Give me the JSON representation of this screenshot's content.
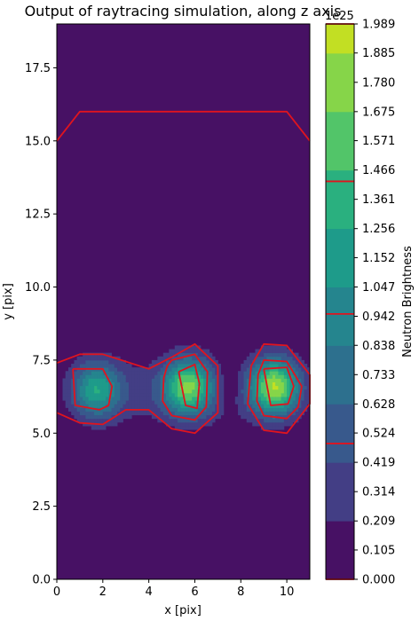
{
  "chart_data": {
    "type": "heatmap",
    "title": "Output of raytracing simulation, along z axis",
    "xlabel": "x [pix]",
    "ylabel": "y [pix]",
    "xlim": [
      0,
      11
    ],
    "ylim": [
      0,
      19
    ],
    "x_ticks": [
      "0",
      "2",
      "4",
      "6",
      "8",
      "10"
    ],
    "y_ticks": [
      "0.0",
      "2.5",
      "5.0",
      "7.5",
      "10.0",
      "12.5",
      "15.0",
      "17.5"
    ],
    "colorbar": {
      "label": "Neutron Brightness",
      "offset_text": "1e25",
      "range": [
        0,
        1.989
      ],
      "ticks": [
        "0.000",
        "0.105",
        "0.209",
        "0.314",
        "0.419",
        "0.524",
        "0.628",
        "0.733",
        "0.838",
        "0.942",
        "1.047",
        "1.152",
        "1.256",
        "1.361",
        "1.466",
        "1.571",
        "1.675",
        "1.780",
        "1.885",
        "1.989"
      ],
      "band_edges": [
        0,
        0.2094,
        0.4188,
        0.6282,
        0.8376,
        1.047,
        1.2564,
        1.4658,
        1.6752,
        1.8846,
        1.989
      ],
      "band_colors": [
        "#471164",
        "#433e85",
        "#38598c",
        "#2d708e",
        "#25858e",
        "#1e9b8a",
        "#2ab07f",
        "#52c569",
        "#86d549",
        "#c2df23"
      ],
      "contour_levels": [
        0,
        0.4864,
        0.9504,
        1.4253,
        1.989
      ],
      "contour_color": "#e0141e"
    },
    "field": {
      "description_none": "",
      "x": [
        0,
        1,
        2,
        3,
        4,
        5,
        6,
        7,
        8,
        9,
        10,
        11
      ],
      "y": [
        0,
        1,
        2,
        3,
        4,
        5,
        6,
        7,
        8,
        9,
        10,
        11,
        12,
        13,
        14,
        15,
        16,
        17,
        18,
        19
      ],
      "blobs": [
        {
          "cx": 1.7,
          "cy": 6.5,
          "peak": 1.1
        },
        {
          "cx": 5.7,
          "cy": 6.6,
          "peak": 1.5
        },
        {
          "cx": 9.5,
          "cy": 6.6,
          "peak": 1.75
        }
      ]
    }
  }
}
